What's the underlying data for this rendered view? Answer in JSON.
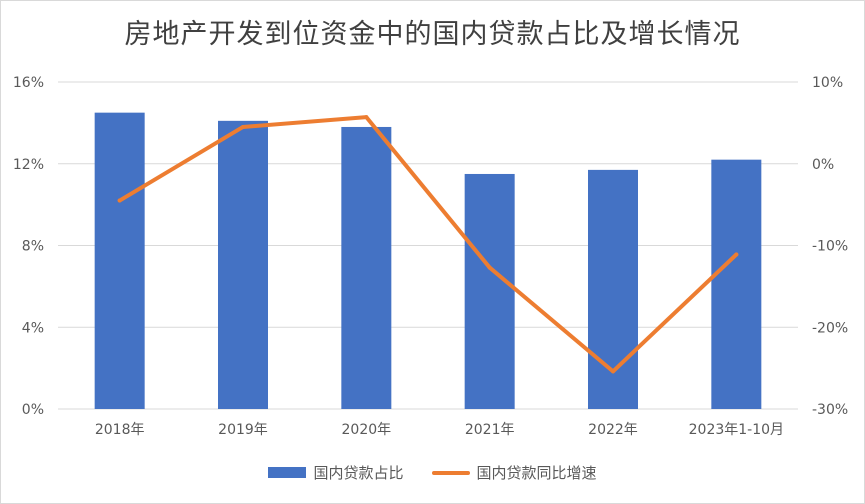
{
  "colors": {
    "bar": "#4472c4",
    "line": "#ed7d31",
    "grid": "#d9d9d9",
    "text": "#595959"
  },
  "chart_data": {
    "type": "bar",
    "title": "房地产开发到位资金中的国内贷款占比及增长情况",
    "categories": [
      "2018年",
      "2019年",
      "2020年",
      "2021年",
      "2022年",
      "2023年1-10月"
    ],
    "series": [
      {
        "name": "国内贷款占比",
        "type": "bar",
        "axis": "left",
        "values": [
          14.5,
          14.1,
          13.8,
          11.5,
          11.7,
          12.2
        ]
      },
      {
        "name": "国内贷款同比增速",
        "type": "line",
        "axis": "right",
        "values": [
          -4.5,
          4.5,
          5.7,
          -12.7,
          -25.4,
          -11.1
        ]
      }
    ],
    "y_left": {
      "ylim": [
        0,
        16
      ],
      "ticks": [
        0,
        4,
        8,
        12,
        16
      ],
      "tick_labels": [
        "0%",
        "4%",
        "8%",
        "12%",
        "16%"
      ]
    },
    "y_right": {
      "ylim": [
        -30,
        10
      ],
      "ticks": [
        -30,
        -20,
        -10,
        0,
        10
      ],
      "tick_labels": [
        "-30%",
        "-20%",
        "-10%",
        "0%",
        "10%"
      ]
    },
    "grid": true,
    "legend": "bottom"
  }
}
